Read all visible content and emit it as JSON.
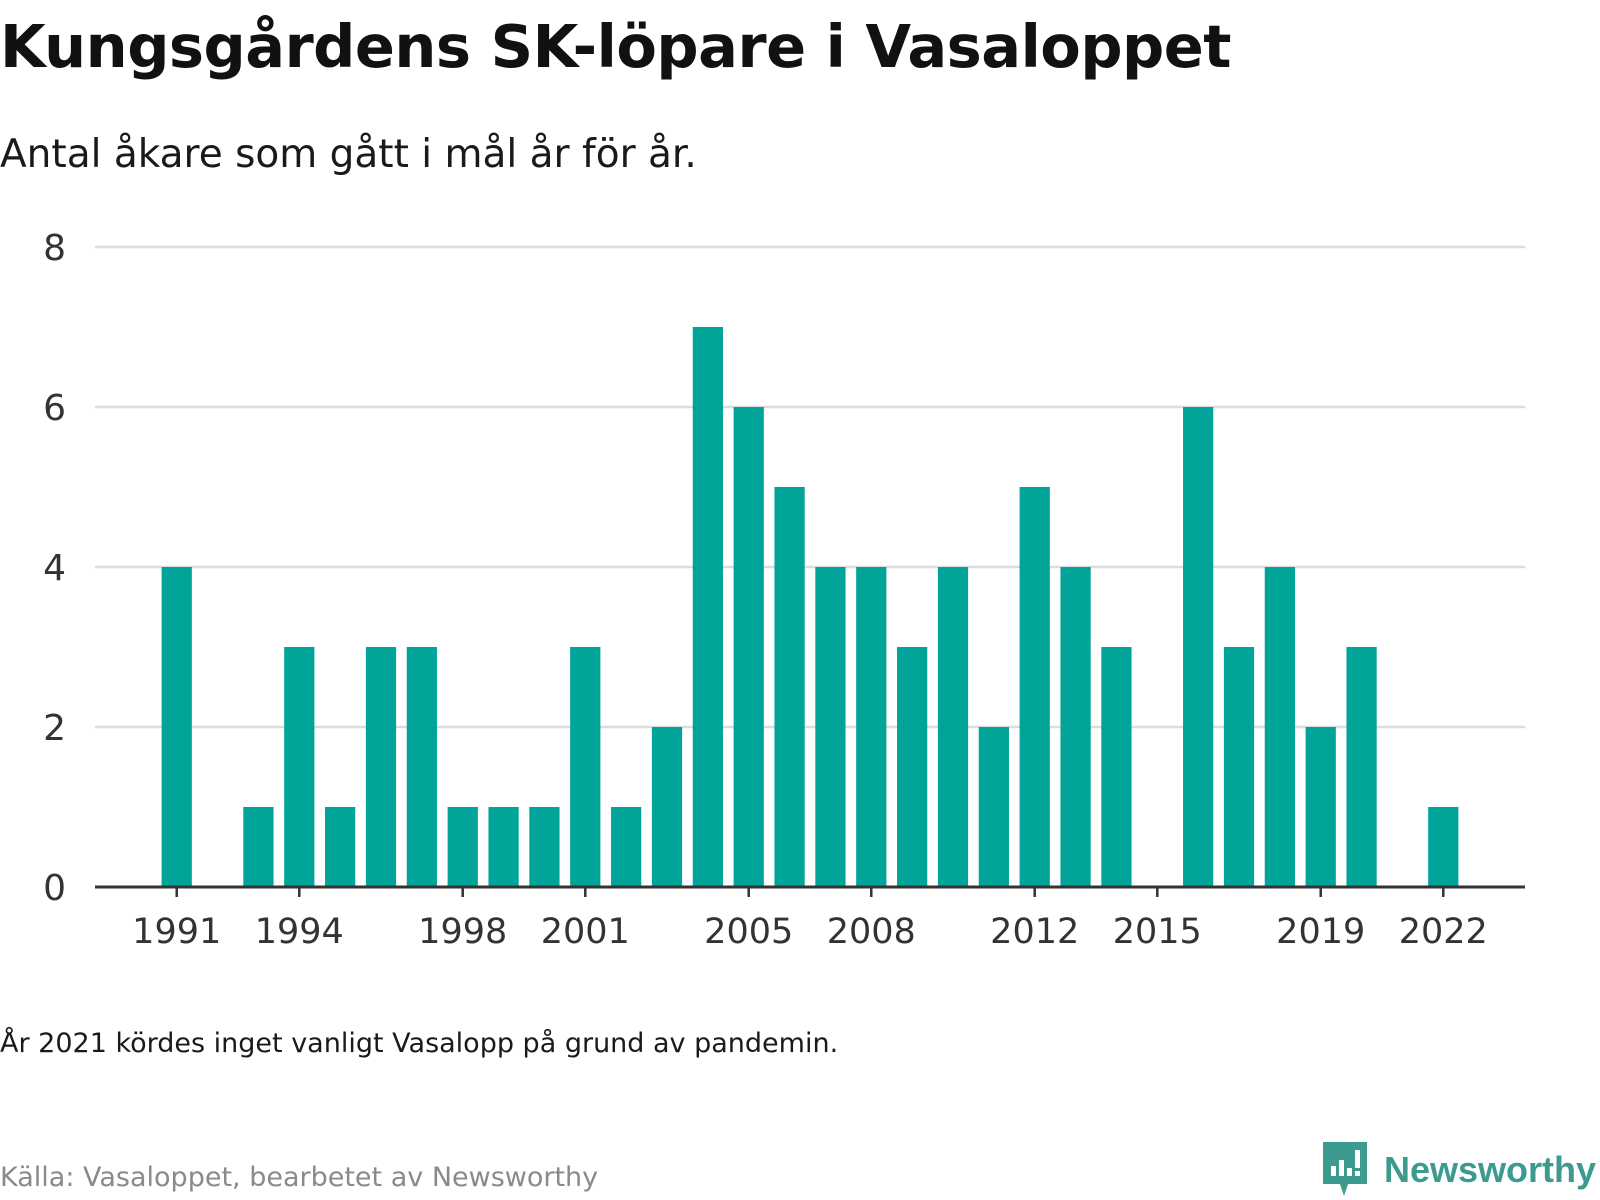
{
  "header": {
    "title": "Kungsgårdens SK-löpare i Vasaloppet",
    "subtitle": "Antal åkare som gått i mål år för år."
  },
  "footer": {
    "note": "År 2021 kördes inget vanligt Vasalopp på grund av pandemin.",
    "source": "Källa: Vasaloppet, bearbetet av Newsworthy",
    "logo_text": "Newsworthy"
  },
  "colors": {
    "bar": "#00a499",
    "grid": "#dcdcdc",
    "axis": "#333333",
    "logo": "#3d9a8f"
  },
  "chart_data": {
    "type": "bar",
    "title": "Kungsgårdens SK-löpare i Vasaloppet",
    "subtitle": "Antal åkare som gått i mål år för år.",
    "xlabel": "",
    "ylabel": "",
    "x": [
      1991,
      1992,
      1993,
      1994,
      1995,
      1996,
      1997,
      1998,
      1999,
      2000,
      2001,
      2002,
      2003,
      2004,
      2005,
      2006,
      2007,
      2008,
      2009,
      2010,
      2011,
      2012,
      2013,
      2014,
      2015,
      2016,
      2017,
      2018,
      2019,
      2020,
      2021,
      2022
    ],
    "values": [
      4,
      0,
      1,
      3,
      1,
      3,
      3,
      1,
      1,
      1,
      3,
      1,
      2,
      7,
      6,
      5,
      4,
      4,
      3,
      4,
      2,
      5,
      4,
      3,
      0,
      6,
      3,
      4,
      2,
      3,
      0,
      1
    ],
    "xticks": [
      1991,
      1994,
      1998,
      2001,
      2005,
      2008,
      2012,
      2015,
      2019,
      2022
    ],
    "yticks": [
      0,
      2,
      4,
      6,
      8
    ],
    "xlim": [
      1989,
      2024
    ],
    "ylim": [
      0,
      8
    ],
    "grid": true,
    "legend": "none"
  }
}
